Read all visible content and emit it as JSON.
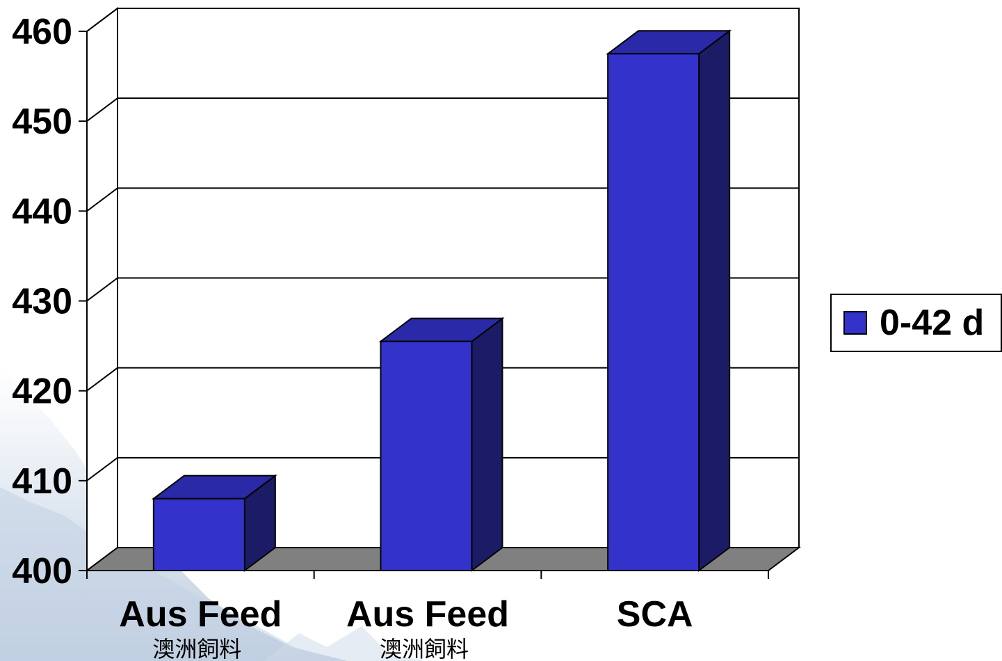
{
  "chart_data": {
    "type": "bar",
    "categories": [
      "Aus Feed",
      "Aus Feed",
      "SCA"
    ],
    "category_sublabels": [
      "澳洲飼料",
      "澳洲飼料",
      ""
    ],
    "series": [
      {
        "name": "0-42 d",
        "values": [
          408,
          425.5,
          457.5
        ]
      }
    ],
    "ylim": [
      400,
      460
    ],
    "yticks": [
      400,
      410,
      420,
      430,
      440,
      450,
      460
    ],
    "grid": true,
    "legend_position": "right",
    "bar_style": "3d",
    "colors": {
      "bar_front": "#3333CC",
      "bar_side": "#1C1C66",
      "bar_top": "#2A2AA8",
      "floor": "#808080",
      "grid": "#000000"
    }
  }
}
